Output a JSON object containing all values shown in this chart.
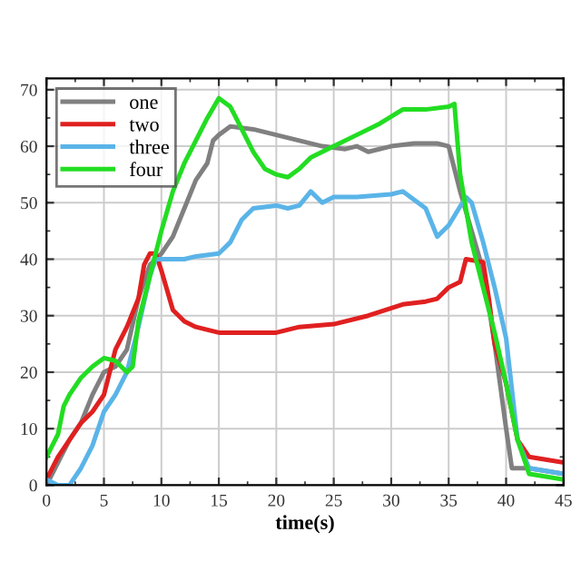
{
  "chart_data": {
    "type": "line",
    "xlabel": "time(s)",
    "xlim": [
      0,
      45
    ],
    "ylim": [
      0,
      72
    ],
    "xticks": [
      0,
      5,
      10,
      15,
      20,
      25,
      30,
      35,
      40,
      45
    ],
    "yticks": [
      0,
      10,
      20,
      30,
      40,
      50,
      60,
      70
    ],
    "grid": true,
    "legend": "top left",
    "marker": "none",
    "line_style": "solid",
    "series": [
      {
        "name": "one",
        "color": "#808080",
        "x": [
          0,
          1,
          2,
          3,
          4,
          5,
          6,
          7,
          8,
          9,
          10,
          11,
          12,
          13,
          14,
          14.5,
          15,
          16,
          18,
          20,
          22,
          24,
          26,
          27,
          28,
          30,
          32,
          34,
          35,
          36,
          37,
          38,
          39,
          40,
          40.5,
          42,
          45
        ],
        "values": [
          0,
          4,
          8,
          11,
          16,
          20,
          21,
          24,
          33,
          39,
          41,
          44,
          49,
          54,
          57,
          61,
          62,
          63.5,
          63,
          62,
          61,
          60,
          59.5,
          60,
          59,
          60,
          60.5,
          60.5,
          60,
          52,
          45,
          38,
          25,
          10,
          3,
          3,
          2
        ]
      },
      {
        "name": "two",
        "color": "#e02020",
        "x": [
          0,
          1,
          2,
          3,
          4,
          5,
          6,
          7,
          8,
          8.5,
          9,
          9.5,
          10,
          11,
          12,
          13,
          15,
          20,
          22,
          25,
          28,
          31,
          33,
          34,
          35,
          36,
          36.5,
          38,
          38.5,
          39,
          40,
          41,
          42,
          45
        ],
        "values": [
          1,
          5,
          8,
          11,
          13,
          16,
          24,
          28,
          33,
          39,
          41,
          41,
          38,
          31,
          29,
          28,
          27,
          27,
          28,
          28.5,
          30,
          32,
          32.5,
          33,
          35,
          36,
          40,
          39.5,
          33,
          25,
          18,
          8,
          5,
          4
        ]
      },
      {
        "name": "three",
        "color": "#5ab4e8",
        "x": [
          0,
          1,
          2,
          3,
          4,
          5,
          6,
          7,
          8,
          9,
          9.5,
          11,
          12,
          13,
          15,
          16,
          17,
          18,
          20,
          21,
          22,
          23,
          24,
          25,
          27,
          30,
          31,
          33,
          34,
          35,
          36.5,
          37,
          38,
          39,
          40,
          41,
          42,
          45
        ],
        "values": [
          1,
          0,
          0,
          3,
          7,
          13,
          16,
          20,
          28,
          37,
          40,
          40,
          40,
          40.5,
          41,
          43,
          47,
          49,
          49.5,
          49,
          49.5,
          52,
          50,
          51,
          51,
          51.5,
          52,
          49,
          44,
          46,
          51,
          50,
          43,
          35,
          26,
          8,
          3,
          2
        ]
      },
      {
        "name": "four",
        "color": "#22dd22",
        "x": [
          0,
          1,
          1.5,
          2,
          3,
          4,
          5,
          6,
          7,
          7.5,
          8,
          9,
          10,
          11,
          12,
          13,
          14,
          15,
          16,
          17,
          18,
          19,
          20,
          21,
          22,
          23,
          25,
          27,
          29,
          31,
          33,
          35,
          35.5,
          36,
          37,
          38,
          39,
          40,
          41,
          42,
          45
        ],
        "values": [
          5,
          9,
          14,
          16,
          19,
          21,
          22.5,
          22,
          20,
          21,
          29,
          37,
          45,
          52,
          57,
          61,
          65,
          68.5,
          67,
          63,
          59,
          56,
          55,
          54.5,
          56,
          58,
          60,
          62,
          64,
          66.5,
          66.5,
          67,
          67.5,
          55,
          43,
          35,
          27,
          18,
          8,
          2,
          1
        ]
      }
    ]
  }
}
